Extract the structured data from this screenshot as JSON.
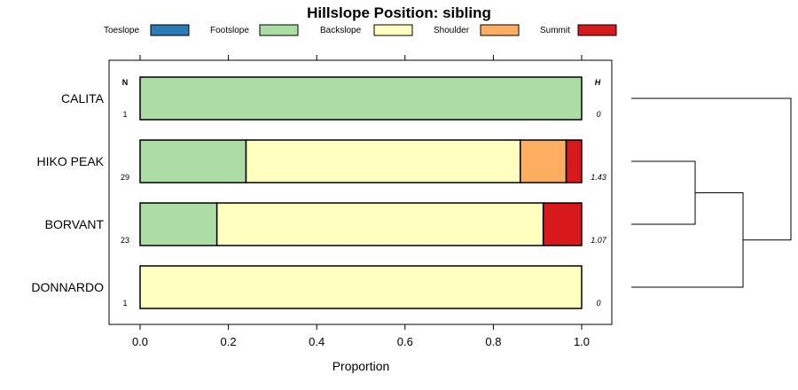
{
  "chart_data": {
    "type": "bar",
    "orientation": "horizontal",
    "stacked": true,
    "title": "Hillslope Position: sibling",
    "xlabel": "Proportion",
    "ylabel": "",
    "xlim": [
      0,
      1
    ],
    "x_ticks": [
      "0.0",
      "0.2",
      "0.4",
      "0.6",
      "0.8",
      "1.0"
    ],
    "legend_position": "top",
    "categories": [
      "CALITA",
      "HIKO PEAK",
      "BORVANT",
      "DONNARDO"
    ],
    "series": [
      {
        "name": "Toeslope",
        "color": "#2c7bb6",
        "values": [
          0,
          0,
          0,
          0
        ]
      },
      {
        "name": "Footslope",
        "color": "#abdda4",
        "values": [
          1.0,
          0.24,
          0.174,
          0
        ]
      },
      {
        "name": "Backslope",
        "color": "#ffffbf",
        "values": [
          0,
          0.621,
          0.739,
          1.0
        ]
      },
      {
        "name": "Shoulder",
        "color": "#fdae61",
        "values": [
          0,
          0.104,
          0,
          0
        ]
      },
      {
        "name": "Summit",
        "color": "#d7191c",
        "values": [
          0,
          0.035,
          0.087,
          0
        ]
      }
    ],
    "n_header": "N",
    "n_values": [
      "1",
      "29",
      "23",
      "1"
    ],
    "h_header": "H",
    "h_values": [
      "0",
      "1.43",
      "1.07",
      "0"
    ],
    "dendrogram": {
      "leaf_order": [
        "CALITA",
        "HIKO PEAK",
        "BORVANT",
        "DONNARDO"
      ],
      "merges": [
        {
          "a": "HIKO PEAK",
          "b": "BORVANT",
          "height": 0.4
        },
        {
          "a": "HIKO PEAK+BORVANT",
          "b": "DONNARDO",
          "height": 0.7
        },
        {
          "a": "CALITA",
          "b": "HIKO PEAK+BORVANT+DONNARDO",
          "height": 1.0
        }
      ]
    }
  }
}
